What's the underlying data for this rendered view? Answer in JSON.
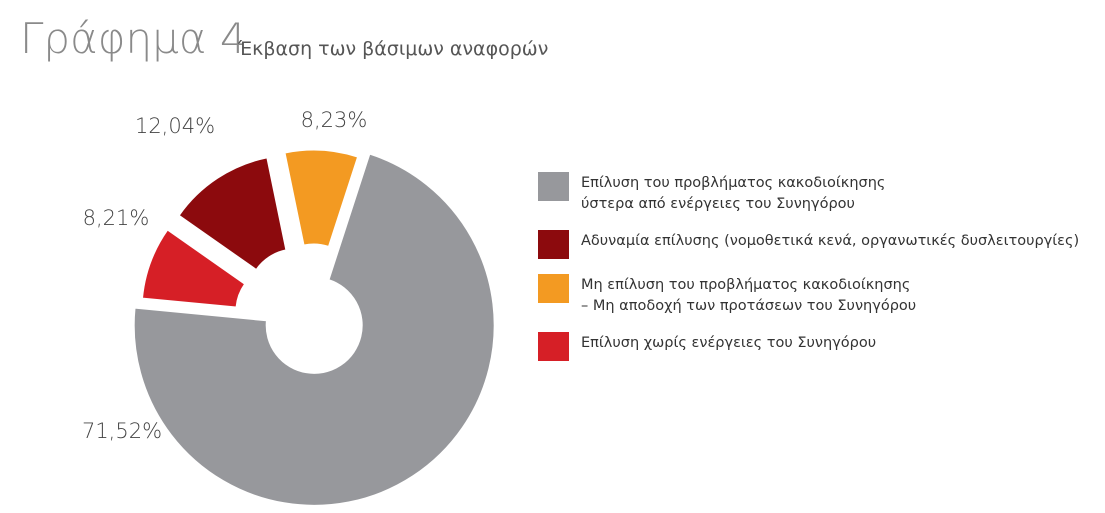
{
  "chart_data": {
    "type": "pie",
    "title": "Γράφημα 4",
    "subtitle": "Έκβαση των βάσιμων αναφορών",
    "categories": [
      "Επίλυση του προβλήματος κακοδιοίκησης\nύστερα από ενέργειες του Συνηγόρου",
      "Αδυναμία επίλυσης (νομοθετικά κενά, οργανωτικές δυσλειτουργίες)",
      "Μη επίλυση του προβλήματος κακοδιοίκησης\n– Μη αποδοχή των προτάσεων του Συνηγόρου",
      "Επίλυση χωρίς ενέργειες του Συνηγόρου"
    ],
    "values": [
      71.52,
      12.04,
      8.23,
      8.21
    ],
    "value_labels": [
      "71,52%",
      "12,04%",
      "8,23%",
      "8,21%"
    ],
    "colors": [
      "#97989c",
      "#8c0a0d",
      "#f39a22",
      "#d61f26"
    ],
    "legend": "right"
  }
}
